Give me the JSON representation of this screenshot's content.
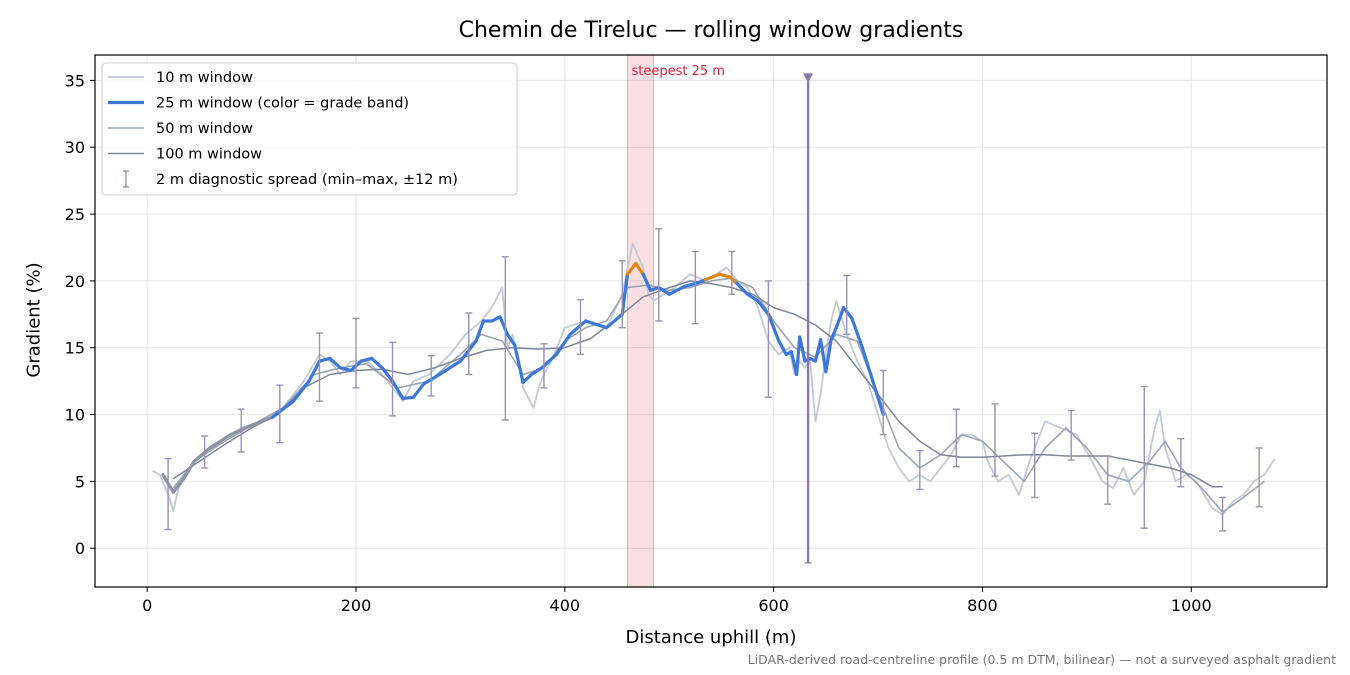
{
  "chart_data": {
    "type": "line",
    "title": "Chemin de Tireluc — rolling window gradients",
    "xlabel": "Distance uphill (m)",
    "ylabel": "Gradient (%)",
    "xlim": [
      -50,
      1130
    ],
    "ylim": [
      -2.9,
      36.9
    ],
    "xticks": [
      0,
      200,
      400,
      600,
      800,
      1000
    ],
    "yticks": [
      0,
      5,
      10,
      15,
      20,
      25,
      30,
      35
    ],
    "grid": true,
    "legend_position": "top-left",
    "footnote": "LiDAR-derived road-centreline profile (0.5 m DTM, bilinear) — not a surveyed asphalt gradient",
    "annotation": {
      "label": "steepest 25 m",
      "x_start": 460,
      "x_end": 485,
      "color": "#d62738"
    },
    "series": [
      {
        "name": "10 m window",
        "color": "#c3cad6",
        "x": [
          5,
          12,
          20,
          25,
          30,
          40,
          55,
          70,
          90,
          110,
          130,
          150,
          165,
          175,
          185,
          195,
          210,
          225,
          235,
          245,
          255,
          270,
          290,
          305,
          320,
          330,
          340,
          345,
          350,
          360,
          370,
          375,
          380,
          390,
          400,
          420,
          440,
          455,
          465,
          475,
          480,
          485,
          495,
          505,
          520,
          535,
          545,
          555,
          565,
          575,
          585,
          595,
          605,
          615,
          620,
          625,
          630,
          635,
          640,
          645,
          650,
          655,
          660,
          670,
          680,
          690,
          700,
          710,
          720,
          730,
          740,
          750,
          760,
          770,
          780,
          790,
          800,
          805,
          815,
          825,
          835,
          845,
          860,
          875,
          890,
          905,
          915,
          925,
          935,
          945,
          955,
          965,
          970,
          975,
          985,
          995,
          1005,
          1020,
          1030,
          1040,
          1050,
          1060,
          1070,
          1080
        ],
        "y": [
          5.8,
          5.5,
          4,
          2.8,
          4.5,
          6,
          7.2,
          8,
          9,
          9.5,
          10.5,
          12.5,
          14.5,
          14,
          13,
          14,
          14,
          13,
          12,
          11,
          12.5,
          13,
          14.5,
          16,
          17,
          18,
          19.5,
          15,
          16,
          12,
          10.5,
          12,
          13,
          14.5,
          16.5,
          17,
          16.5,
          19,
          22.8,
          21,
          19,
          18.5,
          19,
          19.5,
          20.5,
          20,
          20.5,
          21,
          20,
          19.5,
          18,
          15.5,
          14.5,
          15,
          13,
          14,
          13.5,
          14,
          9.5,
          11.5,
          14.5,
          17,
          18.5,
          16,
          14,
          12.5,
          10,
          7.5,
          6,
          5,
          5.5,
          5,
          6,
          7,
          8.5,
          8.5,
          8,
          6.5,
          5,
          5.5,
          4,
          6.5,
          9.5,
          9,
          8.5,
          6.5,
          5,
          4.5,
          6,
          4,
          5,
          9,
          10.3,
          7.5,
          5,
          5.5,
          5,
          3,
          2.5,
          3.5,
          4,
          5,
          5.5,
          6.7
        ]
      },
      {
        "name": "25 m window (color = grade band)",
        "color": "#3c78d8",
        "x": [
          15,
          25,
          35,
          45,
          60,
          80,
          100,
          120,
          140,
          155,
          165,
          175,
          185,
          195,
          205,
          215,
          225,
          235,
          245,
          255,
          265,
          280,
          300,
          315,
          322,
          330,
          338,
          345,
          352,
          360,
          368,
          378,
          392,
          405,
          420,
          440,
          455,
          460,
          468,
          475,
          482,
          490,
          500,
          515,
          525,
          535,
          548,
          558,
          565,
          575,
          585,
          595,
          600,
          605,
          612,
          617,
          622,
          625,
          630,
          635,
          640,
          645,
          650,
          655,
          660,
          667,
          675,
          685,
          695,
          705
        ],
        "y": [
          5.5,
          4.2,
          5.2,
          6.5,
          7.5,
          8.5,
          9.2,
          9.8,
          11,
          12.5,
          14,
          14.2,
          13.5,
          13.3,
          14,
          14.2,
          13.5,
          12.5,
          11.2,
          11.3,
          12.3,
          13,
          14,
          15.5,
          17,
          17,
          17.3,
          16,
          15.2,
          12.4,
          13,
          13.5,
          14.5,
          16,
          17,
          16.5,
          17.5,
          20.5,
          21.3,
          20.5,
          19.3,
          19.5,
          19,
          19.6,
          19.8,
          20.1,
          20.5,
          20.3,
          19.8,
          19,
          18.5,
          17.5,
          16.5,
          15.5,
          14.5,
          14.7,
          13,
          15.8,
          14,
          14.2,
          14,
          15.6,
          13.2,
          15.6,
          16.5,
          18,
          17.2,
          15,
          12.5,
          10
        ]
      },
      {
        "name": "50 m window",
        "color": "#9ba5b5",
        "x": [
          25,
          45,
          70,
          100,
          130,
          160,
          185,
          210,
          240,
          270,
          300,
          320,
          340,
          360,
          380,
          400,
          420,
          440,
          460,
          480,
          500,
          520,
          540,
          560,
          580,
          600,
          620,
          640,
          660,
          680,
          700,
          720,
          740,
          760,
          780,
          800,
          820,
          840,
          860,
          880,
          900,
          920,
          940,
          960,
          975,
          990,
          1010,
          1030,
          1050,
          1070
        ],
        "y": [
          4.5,
          6.5,
          7.8,
          9.2,
          10.5,
          13,
          13.5,
          13.8,
          12,
          12.5,
          14.5,
          16,
          15.5,
          13,
          13.5,
          15.5,
          16.5,
          17,
          19.5,
          19.7,
          19.3,
          19.5,
          20,
          20.2,
          19.5,
          17,
          15,
          14.3,
          16,
          15.5,
          11.5,
          7.5,
          6,
          7,
          8.5,
          8,
          6.5,
          5,
          7.5,
          9,
          7.5,
          5.5,
          5,
          6.5,
          8,
          6,
          4.5,
          2.7,
          3.8,
          5
        ]
      },
      {
        "name": "100 m window",
        "color": "#7f8699",
        "x": [
          25,
          50,
          75,
          100,
          125,
          150,
          175,
          200,
          225,
          250,
          275,
          300,
          325,
          350,
          375,
          400,
          425,
          450,
          475,
          500,
          520,
          540,
          560,
          580,
          600,
          620,
          640,
          660,
          680,
          700,
          720,
          740,
          760,
          780,
          800,
          820,
          840,
          860,
          880,
          900,
          920,
          940,
          960,
          980,
          1000,
          1020,
          1030
        ],
        "y": [
          5.2,
          6.5,
          7.8,
          9,
          10,
          12,
          13,
          13.3,
          13.4,
          13,
          13.5,
          14.2,
          14.8,
          15,
          14.9,
          15,
          15.7,
          17.2,
          18.8,
          19.5,
          20,
          19.8,
          19.5,
          19,
          18,
          17.5,
          16.7,
          15.5,
          13.5,
          11.5,
          9.5,
          8,
          7,
          6.8,
          6.8,
          6.9,
          7,
          7,
          6.9,
          6.9,
          6.9,
          6.6,
          6.3,
          6,
          5.5,
          4.6,
          4.6
        ]
      }
    ],
    "errorbars": {
      "name": "2 m diagnostic spread (min–max, ±12 m)",
      "color": "#9991b8",
      "x": [
        20,
        55,
        90,
        127,
        165,
        200,
        235,
        272,
        308,
        343,
        380,
        415,
        455,
        490,
        525,
        560,
        595,
        633,
        670,
        705,
        740,
        775,
        812,
        850,
        885,
        920,
        955,
        990,
        1030,
        1065
      ],
      "low": [
        1.4,
        6,
        7.2,
        7.9,
        11,
        12,
        9.9,
        11.4,
        13,
        9.6,
        12,
        14.5,
        16.5,
        17,
        16.8,
        19,
        11.3,
        -1.1,
        16,
        8.5,
        4.4,
        6.1,
        5.4,
        3.8,
        6.6,
        3.3,
        1.5,
        4.6,
        1.3,
        3.1
      ],
      "high": [
        6.7,
        8.4,
        10.4,
        12.2,
        16.1,
        17.2,
        15.4,
        14.4,
        17.6,
        21.8,
        15.3,
        18.6,
        21.5,
        23.9,
        22.2,
        22.2,
        20,
        35.3,
        20.4,
        13.3,
        7.3,
        10.4,
        10.8,
        8.6,
        10.3,
        6.9,
        12.1,
        8.2,
        3.8,
        7.5
      ]
    }
  }
}
